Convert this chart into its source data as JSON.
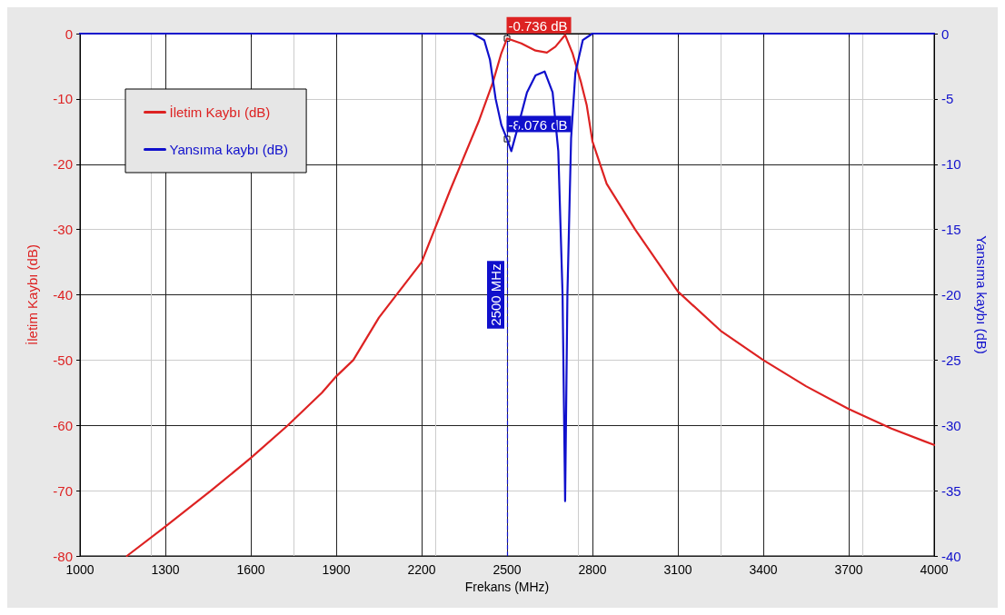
{
  "chart_data": {
    "type": "line",
    "xlabel": "Frekans (MHz)",
    "ylabel": "İletim Kaybı (dB)",
    "y2label": "Yansıma kaybı (dB)",
    "xlim": [
      1000,
      4000
    ],
    "xticks": [
      1000,
      1300,
      1600,
      1900,
      2200,
      2500,
      2800,
      3100,
      3400,
      3700,
      4000
    ],
    "ylim": [
      -80,
      0
    ],
    "yticks": [
      -80,
      -70,
      -60,
      -50,
      -40,
      -30,
      -20,
      -10,
      0
    ],
    "y2lim": [
      -40,
      0
    ],
    "y2ticks": [
      -40,
      -35,
      -30,
      -25,
      -20,
      -15,
      -10,
      -5,
      0
    ],
    "grid": true,
    "legend": "top left",
    "marker": "none",
    "line_style": "solid",
    "series": [
      {
        "name": "İletim Kaybı (dB)",
        "color": "#dd2222",
        "x": [
          1165,
          1300,
          1460,
          1600,
          1730,
          1850,
          1900,
          1960,
          2050,
          2200,
          2300,
          2400,
          2450,
          2480,
          2500,
          2550,
          2600,
          2640,
          2670,
          2704,
          2730,
          2760,
          2780,
          2800,
          2850,
          2950,
          3100,
          3250,
          3400,
          3550,
          3700,
          3850,
          4000
        ],
        "values": [
          -80,
          -75.5,
          -70,
          -65,
          -60,
          -55,
          -52.5,
          -50,
          -43.5,
          -35,
          -24,
          -13.5,
          -7.5,
          -3,
          -0.736,
          -1.5,
          -2.6,
          -2.9,
          -2,
          -0.2,
          -3,
          -7.5,
          -11,
          -16.5,
          -23,
          -30,
          -39.5,
          -45.5,
          -50,
          -54,
          -57.5,
          -60.5,
          -63
        ]
      },
      {
        "name": "Yansıma kaybı (dB)",
        "color": "#1010cc",
        "axis": "y2",
        "x": [
          1000,
          2380,
          2420,
          2440,
          2460,
          2480,
          2500,
          2515,
          2540,
          2570,
          2600,
          2632,
          2660,
          2680,
          2695,
          2704,
          2712,
          2725,
          2740,
          2766,
          2800,
          4000
        ],
        "values": [
          0,
          0,
          -0.5,
          -2,
          -5,
          -7,
          -8.076,
          -9,
          -7,
          -4.5,
          -3.2,
          -2.9,
          -4.5,
          -9,
          -20,
          -35.8,
          -20,
          -8,
          -3,
          -0.5,
          0,
          0
        ]
      }
    ],
    "ref_lines": [
      {
        "axis": "x",
        "value": 2500,
        "label": "2500 MHz",
        "color": "#1010cc",
        "line_style": "dashed"
      }
    ],
    "annotations": [
      {
        "text": "-0.736 dB",
        "x": 2500,
        "y": -0.736
      },
      "-8.076 dB"
    ]
  }
}
